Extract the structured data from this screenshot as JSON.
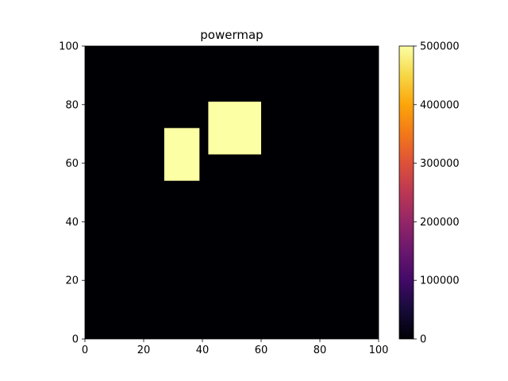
{
  "chart_data": {
    "type": "heatmap",
    "title": "powermap",
    "xlabel": "",
    "ylabel": "",
    "xlim": [
      0,
      100
    ],
    "ylim": [
      0,
      100
    ],
    "x_ticks": [
      "0",
      "20",
      "40",
      "60",
      "80",
      "100"
    ],
    "y_ticks": [
      "0",
      "20",
      "40",
      "60",
      "80",
      "100"
    ],
    "background_value": 0,
    "regions": [
      {
        "x_range": [
          27,
          39
        ],
        "y_range": [
          54,
          72
        ],
        "value": 500000
      },
      {
        "x_range": [
          42,
          60
        ],
        "y_range": [
          63,
          81
        ],
        "value": 500000
      }
    ],
    "colorbar": {
      "colormap": "inferno",
      "range": [
        0,
        500000
      ],
      "ticks": [
        "0",
        "100000",
        "200000",
        "300000",
        "400000",
        "500000"
      ]
    },
    "grid": false,
    "legend": false
  }
}
